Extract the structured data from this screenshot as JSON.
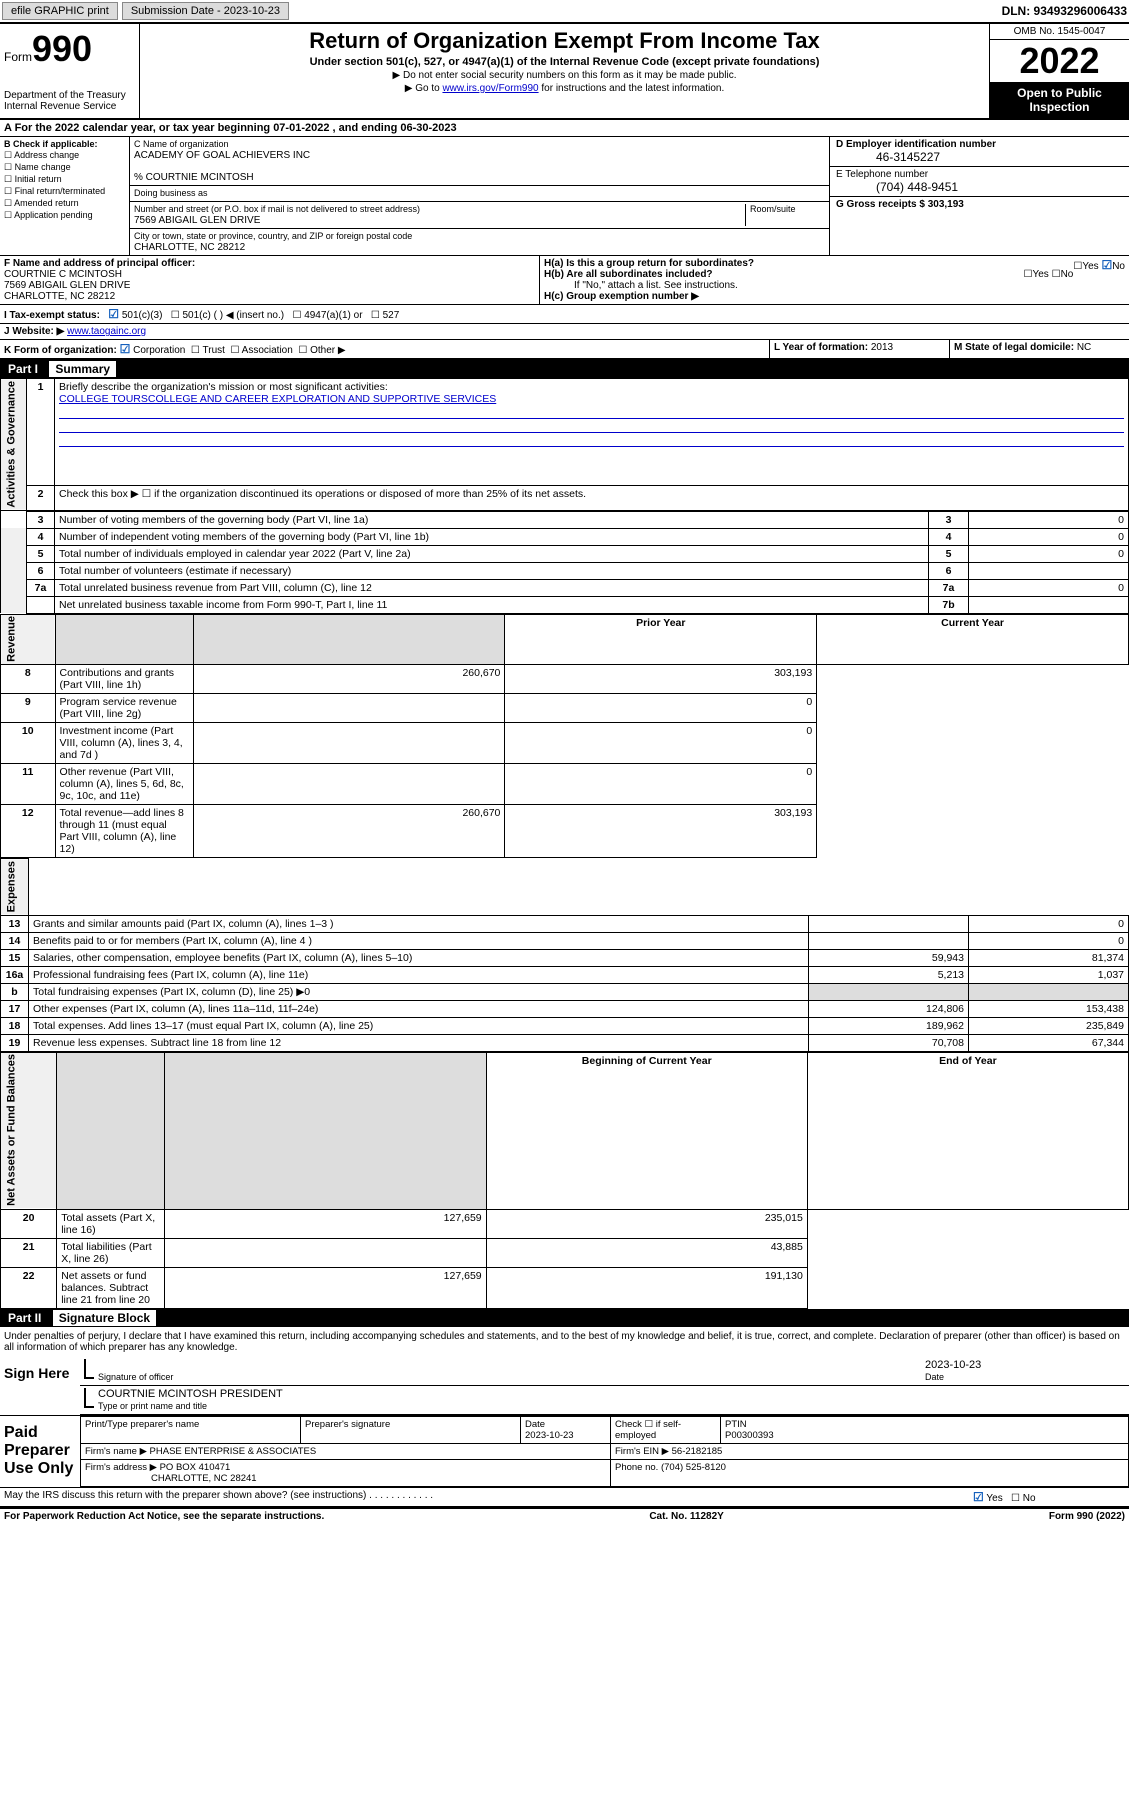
{
  "topbar": {
    "efile": "efile GRAPHIC print",
    "sub_label": "Submission Date - 2023-10-23",
    "dln": "DLN: 93493296006433"
  },
  "header": {
    "form_label": "Form",
    "form_num": "990",
    "dept": "Department of the Treasury",
    "irs": "Internal Revenue Service",
    "title": "Return of Organization Exempt From Income Tax",
    "subtitle": "Under section 501(c), 527, or 4947(a)(1) of the Internal Revenue Code (except private foundations)",
    "note1": "▶ Do not enter social security numbers on this form as it may be made public.",
    "note2_pre": "▶ Go to ",
    "note2_link": "www.irs.gov/Form990",
    "note2_post": " for instructions and the latest information.",
    "omb": "OMB No. 1545-0047",
    "year": "2022",
    "open": "Open to Public Inspection"
  },
  "lineA": "A For the 2022 calendar year, or tax year beginning 07-01-2022   , and ending 06-30-2023",
  "colB": {
    "title": "B Check if applicable:",
    "opts": [
      "Address change",
      "Name change",
      "Initial return",
      "Final return/terminated",
      "Amended return",
      "Application pending"
    ]
  },
  "colC": {
    "name_lbl": "C Name of organization",
    "name": "ACADEMY OF GOAL ACHIEVERS INC",
    "care": "% COURTNIE MCINTOSH",
    "dba_lbl": "Doing business as",
    "street_lbl": "Number and street (or P.O. box if mail is not delivered to street address)",
    "room_lbl": "Room/suite",
    "street": "7569 ABIGAIL GLEN DRIVE",
    "city_lbl": "City or town, state or province, country, and ZIP or foreign postal code",
    "city": "CHARLOTTE, NC  28212"
  },
  "colD": {
    "ein_lbl": "D Employer identification number",
    "ein": "46-3145227",
    "tel_lbl": "E Telephone number",
    "tel": "(704) 448-9451",
    "gross_lbl": "G Gross receipts $",
    "gross": "303,193"
  },
  "rowF": {
    "lbl": "F Name and address of principal officer:",
    "name": "COURTNIE C MCINTOSH",
    "street": "7569 ABIGAIL GLEN DRIVE",
    "city": "CHARLOTTE, NC  28212"
  },
  "rowH": {
    "ha": "H(a)  Is this a group return for subordinates?",
    "hb": "H(b)  Are all subordinates included?",
    "hb_note": "If \"No,\" attach a list. See instructions.",
    "hc": "H(c)  Group exemption number ▶",
    "yes": "Yes",
    "no": "No"
  },
  "rowI": {
    "lbl": "I  Tax-exempt status:",
    "opt1": "501(c)(3)",
    "opt2": "501(c) (   ) ◀ (insert no.)",
    "opt3": "4947(a)(1) or",
    "opt4": "527"
  },
  "rowJ": {
    "lbl": "J  Website: ▶",
    "val": "www.taogainc.org"
  },
  "rowK": {
    "lbl": "K Form of organization:",
    "opts": [
      "Corporation",
      "Trust",
      "Association",
      "Other ▶"
    ],
    "l_lbl": "L Year of formation:",
    "l_val": "2013",
    "m_lbl": "M State of legal domicile:",
    "m_val": "NC"
  },
  "part1": {
    "hdr": "Part I",
    "title": "Summary",
    "line1_lbl": "Briefly describe the organization's mission or most significant activities:",
    "line1_val": "COLLEGE TOURSCOLLEGE AND CAREER EXPLORATION AND SUPPORTIVE SERVICES",
    "line2": "Check this box ▶ ☐ if the organization discontinued its operations or disposed of more than 25% of its net assets.",
    "groups": {
      "gov": "Activities & Governance",
      "rev": "Revenue",
      "exp": "Expenses",
      "net": "Net Assets or Fund Balances"
    },
    "col_prior": "Prior Year",
    "col_curr": "Current Year",
    "col_begin": "Beginning of Current Year",
    "col_end": "End of Year",
    "rows_gov": [
      {
        "n": "3",
        "t": "Number of voting members of the governing body (Part VI, line 1a)",
        "box": "3",
        "v": "0"
      },
      {
        "n": "4",
        "t": "Number of independent voting members of the governing body (Part VI, line 1b)",
        "box": "4",
        "v": "0"
      },
      {
        "n": "5",
        "t": "Total number of individuals employed in calendar year 2022 (Part V, line 2a)",
        "box": "5",
        "v": "0"
      },
      {
        "n": "6",
        "t": "Total number of volunteers (estimate if necessary)",
        "box": "6",
        "v": ""
      },
      {
        "n": "7a",
        "t": "Total unrelated business revenue from Part VIII, column (C), line 12",
        "box": "7a",
        "v": "0"
      },
      {
        "n": "",
        "t": "Net unrelated business taxable income from Form 990-T, Part I, line 11",
        "box": "7b",
        "v": ""
      }
    ],
    "rows_rev": [
      {
        "n": "8",
        "t": "Contributions and grants (Part VIII, line 1h)",
        "p": "260,670",
        "c": "303,193"
      },
      {
        "n": "9",
        "t": "Program service revenue (Part VIII, line 2g)",
        "p": "",
        "c": "0"
      },
      {
        "n": "10",
        "t": "Investment income (Part VIII, column (A), lines 3, 4, and 7d )",
        "p": "",
        "c": "0"
      },
      {
        "n": "11",
        "t": "Other revenue (Part VIII, column (A), lines 5, 6d, 8c, 9c, 10c, and 11e)",
        "p": "",
        "c": "0"
      },
      {
        "n": "12",
        "t": "Total revenue—add lines 8 through 11 (must equal Part VIII, column (A), line 12)",
        "p": "260,670",
        "c": "303,193"
      }
    ],
    "rows_exp": [
      {
        "n": "13",
        "t": "Grants and similar amounts paid (Part IX, column (A), lines 1–3 )",
        "p": "",
        "c": "0"
      },
      {
        "n": "14",
        "t": "Benefits paid to or for members (Part IX, column (A), line 4 )",
        "p": "",
        "c": "0"
      },
      {
        "n": "15",
        "t": "Salaries, other compensation, employee benefits (Part IX, column (A), lines 5–10)",
        "p": "59,943",
        "c": "81,374"
      },
      {
        "n": "16a",
        "t": "Professional fundraising fees (Part IX, column (A), line 11e)",
        "p": "5,213",
        "c": "1,037"
      },
      {
        "n": "b",
        "t": "Total fundraising expenses (Part IX, column (D), line 25) ▶0",
        "p": "SHADE",
        "c": "SHADE"
      },
      {
        "n": "17",
        "t": "Other expenses (Part IX, column (A), lines 11a–11d, 11f–24e)",
        "p": "124,806",
        "c": "153,438"
      },
      {
        "n": "18",
        "t": "Total expenses. Add lines 13–17 (must equal Part IX, column (A), line 25)",
        "p": "189,962",
        "c": "235,849"
      },
      {
        "n": "19",
        "t": "Revenue less expenses. Subtract line 18 from line 12",
        "p": "70,708",
        "c": "67,344"
      }
    ],
    "rows_net": [
      {
        "n": "20",
        "t": "Total assets (Part X, line 16)",
        "p": "127,659",
        "c": "235,015"
      },
      {
        "n": "21",
        "t": "Total liabilities (Part X, line 26)",
        "p": "",
        "c": "43,885"
      },
      {
        "n": "22",
        "t": "Net assets or fund balances. Subtract line 21 from line 20",
        "p": "127,659",
        "c": "191,130"
      }
    ]
  },
  "part2": {
    "hdr": "Part II",
    "title": "Signature Block",
    "decl": "Under penalties of perjury, I declare that I have examined this return, including accompanying schedules and statements, and to the best of my knowledge and belief, it is true, correct, and complete. Declaration of preparer (other than officer) is based on all information of which preparer has any knowledge.",
    "sign_here": "Sign Here",
    "sig_officer": "Signature of officer",
    "sig_date": "2023-10-23",
    "date_lbl": "Date",
    "sig_name": "COURTNIE MCINTOSH  PRESIDENT",
    "sig_name_lbl": "Type or print name and title",
    "paid": "Paid Preparer Use Only",
    "prep_name_lbl": "Print/Type preparer's name",
    "prep_sig_lbl": "Preparer's signature",
    "prep_date_lbl": "Date",
    "prep_date": "2023-10-23",
    "check_lbl": "Check ☐ if self-employed",
    "ptin_lbl": "PTIN",
    "ptin": "P00300393",
    "firm_name_lbl": "Firm's name    ▶",
    "firm_name": "PHASE ENTERPRISE & ASSOCIATES",
    "firm_ein_lbl": "Firm's EIN ▶",
    "firm_ein": "56-2182185",
    "firm_addr_lbl": "Firm's address ▶",
    "firm_addr": "PO BOX 410471",
    "firm_city": "CHARLOTTE, NC  28241",
    "firm_phone_lbl": "Phone no.",
    "firm_phone": "(704) 525-8120",
    "may_irs": "May the IRS discuss this return with the preparer shown above? (see instructions)",
    "yes": "Yes",
    "no": "No"
  },
  "footer": {
    "left": "For Paperwork Reduction Act Notice, see the separate instructions.",
    "mid": "Cat. No. 11282Y",
    "right": "Form 990 (2022)"
  }
}
